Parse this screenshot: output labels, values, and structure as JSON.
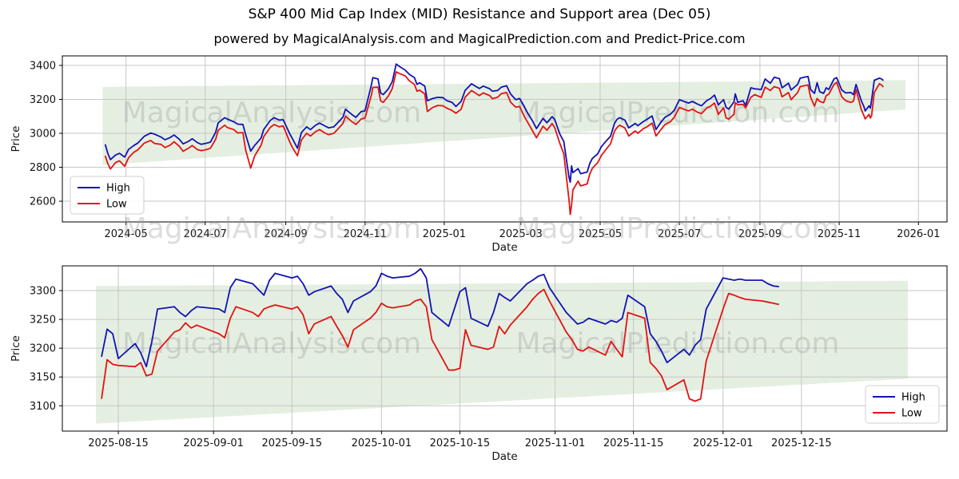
{
  "title": "S&P 400 Mid Cap Index (MID) Resistance and Support area (Dec 05)",
  "subtitle": "powered by MagicalAnalysis.com and MagicalPrediction.com and Predict-Price.com",
  "watermarks": [
    "MagicalAnalysis.com",
    "MagicalPrediction.com"
  ],
  "legend": {
    "high_label": "High",
    "low_label": "Low"
  },
  "colors": {
    "high": "#1212b4",
    "low": "#e41212",
    "band": "#e4efe1",
    "grid": "#c6c6c6",
    "spine": "#000000",
    "tick_text": "#141414",
    "watermark": "#989898",
    "legend_border": "#cccccc"
  },
  "chart_data": [
    {
      "type": "line",
      "name": "top-chart",
      "xlabel": "Date",
      "ylabel": "Price",
      "legend_position": "lower-left",
      "x_domain": [
        "2024-03-13",
        "2026-01-23"
      ],
      "y_domain": [
        2478,
        3456
      ],
      "y_ticks": [
        2600,
        2800,
        3000,
        3200,
        3400
      ],
      "x_ticks": [
        {
          "label": "2024-05",
          "date": "2024-05-01"
        },
        {
          "label": "2024-07",
          "date": "2024-07-01"
        },
        {
          "label": "2024-09",
          "date": "2024-09-01"
        },
        {
          "label": "2024-11",
          "date": "2024-11-01"
        },
        {
          "label": "2025-01",
          "date": "2025-01-01"
        },
        {
          "label": "2025-03",
          "date": "2025-03-01"
        },
        {
          "label": "2025-05",
          "date": "2025-05-01"
        },
        {
          "label": "2025-07",
          "date": "2025-07-01"
        },
        {
          "label": "2025-09",
          "date": "2025-09-01"
        },
        {
          "label": "2025-11",
          "date": "2025-11-01"
        },
        {
          "label": "2026-01",
          "date": "2026-01-01"
        }
      ],
      "band": {
        "x": [
          "2024-04-13",
          "2025-12-22"
        ],
        "upper": [
          3274,
          3313
        ],
        "lower": [
          2813,
          3140
        ]
      },
      "x": [
        "2024-04-15",
        "2024-04-17",
        "2024-04-19",
        "2024-04-23",
        "2024-04-26",
        "2024-04-30",
        "2024-05-03",
        "2024-05-07",
        "2024-05-10",
        "2024-05-15",
        "2024-05-20",
        "2024-05-23",
        "2024-05-28",
        "2024-05-31",
        "2024-06-04",
        "2024-06-07",
        "2024-06-11",
        "2024-06-14",
        "2024-06-18",
        "2024-06-21",
        "2024-06-25",
        "2024-06-28",
        "2024-07-02",
        "2024-07-05",
        "2024-07-09",
        "2024-07-11",
        "2024-07-16",
        "2024-07-18",
        "2024-07-23",
        "2024-07-26",
        "2024-07-30",
        "2024-08-01",
        "2024-08-05",
        "2024-08-08",
        "2024-08-13",
        "2024-08-15",
        "2024-08-20",
        "2024-08-23",
        "2024-08-27",
        "2024-08-30",
        "2024-09-04",
        "2024-09-06",
        "2024-09-10",
        "2024-09-13",
        "2024-09-17",
        "2024-09-20",
        "2024-09-24",
        "2024-09-27",
        "2024-10-01",
        "2024-10-04",
        "2024-10-08",
        "2024-10-11",
        "2024-10-15",
        "2024-10-17",
        "2024-10-22",
        "2024-10-25",
        "2024-10-29",
        "2024-11-01",
        "2024-11-06",
        "2024-11-07",
        "2024-11-11",
        "2024-11-13",
        "2024-11-15",
        "2024-11-19",
        "2024-11-22",
        "2024-11-25",
        "2024-11-27",
        "2024-12-02",
        "2024-12-05",
        "2024-12-09",
        "2024-12-11",
        "2024-12-13",
        "2024-12-17",
        "2024-12-19",
        "2024-12-23",
        "2024-12-27",
        "2024-12-31",
        "2025-01-03",
        "2025-01-07",
        "2025-01-10",
        "2025-01-14",
        "2025-01-17",
        "2025-01-22",
        "2025-01-24",
        "2025-01-28",
        "2025-01-31",
        "2025-02-05",
        "2025-02-07",
        "2025-02-11",
        "2025-02-14",
        "2025-02-18",
        "2025-02-21",
        "2025-02-25",
        "2025-02-28",
        "2025-03-04",
        "2025-03-06",
        "2025-03-10",
        "2025-03-13",
        "2025-03-18",
        "2025-03-21",
        "2025-03-25",
        "2025-03-27",
        "2025-03-31",
        "2025-04-03",
        "2025-04-07",
        "2025-04-08",
        "2025-04-09",
        "2025-04-10",
        "2025-04-14",
        "2025-04-16",
        "2025-04-21",
        "2025-04-23",
        "2025-04-25",
        "2025-04-29",
        "2025-05-02",
        "2025-05-06",
        "2025-05-09",
        "2025-05-12",
        "2025-05-14",
        "2025-05-16",
        "2025-05-20",
        "2025-05-23",
        "2025-05-28",
        "2025-05-30",
        "2025-06-03",
        "2025-06-06",
        "2025-06-10",
        "2025-06-13",
        "2025-06-17",
        "2025-06-20",
        "2025-06-24",
        "2025-06-27",
        "2025-07-01",
        "2025-07-03",
        "2025-07-08",
        "2025-07-11",
        "2025-07-15",
        "2025-07-18",
        "2025-07-22",
        "2025-07-25",
        "2025-07-28",
        "2025-07-31",
        "2025-08-04",
        "2025-08-06",
        "2025-08-08",
        "2025-08-12",
        "2025-08-13",
        "2025-08-15",
        "2025-08-19",
        "2025-08-21",
        "2025-08-25",
        "2025-08-28",
        "2025-09-02",
        "2025-09-05",
        "2025-09-09",
        "2025-09-12",
        "2025-09-16",
        "2025-09-18",
        "2025-09-23",
        "2025-09-25",
        "2025-09-30",
        "2025-10-02",
        "2025-10-08",
        "2025-10-10",
        "2025-10-13",
        "2025-10-15",
        "2025-10-17",
        "2025-10-20",
        "2025-10-22",
        "2025-10-24",
        "2025-10-28",
        "2025-10-30",
        "2025-11-03",
        "2025-11-06",
        "2025-11-10",
        "2025-11-12",
        "2025-11-14",
        "2025-11-18",
        "2025-11-20",
        "2025-11-21",
        "2025-11-24",
        "2025-11-25",
        "2025-11-26",
        "2025-11-28",
        "2025-12-02",
        "2025-12-04",
        "2025-12-05"
      ],
      "series": [
        {
          "name": "High",
          "color": "#1212b4",
          "values": [
            2935,
            2882,
            2845,
            2872,
            2882,
            2860,
            2905,
            2928,
            2942,
            2982,
            3002,
            2995,
            2978,
            2962,
            2975,
            2990,
            2965,
            2938,
            2952,
            2968,
            2945,
            2935,
            2942,
            2948,
            3006,
            3062,
            3092,
            3084,
            3068,
            3054,
            3052,
            2995,
            2895,
            2928,
            2972,
            3022,
            3075,
            3092,
            3078,
            3080,
            2998,
            2970,
            2912,
            3004,
            3038,
            3022,
            3048,
            3060,
            3044,
            3032,
            3038,
            3062,
            3095,
            3142,
            3110,
            3094,
            3128,
            3132,
            3288,
            3328,
            3320,
            3238,
            3228,
            3262,
            3305,
            3408,
            3396,
            3372,
            3348,
            3328,
            3288,
            3298,
            3278,
            3192,
            3205,
            3212,
            3210,
            3192,
            3182,
            3158,
            3188,
            3252,
            3292,
            3282,
            3264,
            3278,
            3262,
            3248,
            3252,
            3272,
            3280,
            3232,
            3198,
            3205,
            3152,
            3122,
            3072,
            3028,
            3088,
            3062,
            3098,
            3082,
            2995,
            2952,
            2742,
            2712,
            2808,
            2768,
            2792,
            2762,
            2772,
            2822,
            2852,
            2878,
            2922,
            2958,
            2982,
            3058,
            3082,
            3092,
            3078,
            3032,
            3058,
            3045,
            3068,
            3082,
            3102,
            3022,
            3068,
            3095,
            3112,
            3135,
            3198,
            3192,
            3178,
            3188,
            3172,
            3162,
            3192,
            3205,
            3225,
            3168,
            3198,
            3152,
            3142,
            3185,
            3232,
            3182,
            3192,
            3164,
            3268,
            3262,
            3258,
            3320,
            3295,
            3330,
            3322,
            3268,
            3295,
            3255,
            3288,
            3325,
            3335,
            3258,
            3235,
            3298,
            3245,
            3235,
            3268,
            3258,
            3320,
            3328,
            3255,
            3238,
            3240,
            3228,
            3288,
            3192,
            3158,
            3132,
            3162,
            3148,
            3198,
            3312,
            3325,
            3318,
            3310
          ]
        },
        {
          "name": "Low",
          "color": "#e41212",
          "values": [
            2868,
            2822,
            2790,
            2828,
            2838,
            2806,
            2856,
            2888,
            2902,
            2942,
            2958,
            2940,
            2935,
            2916,
            2930,
            2950,
            2924,
            2894,
            2912,
            2928,
            2904,
            2898,
            2904,
            2912,
            2964,
            3018,
            3048,
            3034,
            3022,
            3002,
            3004,
            2905,
            2795,
            2866,
            2930,
            2980,
            3034,
            3052,
            3038,
            3044,
            2950,
            2918,
            2868,
            2960,
            3000,
            2984,
            3010,
            3022,
            3002,
            2992,
            3000,
            3024,
            3058,
            3100,
            3068,
            3052,
            3084,
            3090,
            3228,
            3270,
            3272,
            3192,
            3182,
            3220,
            3264,
            3362,
            3354,
            3338,
            3310,
            3288,
            3248,
            3254,
            3232,
            3128,
            3152,
            3164,
            3162,
            3148,
            3134,
            3118,
            3142,
            3212,
            3252,
            3242,
            3222,
            3238,
            3222,
            3204,
            3212,
            3234,
            3240,
            3184,
            3154,
            3158,
            3094,
            3068,
            3014,
            2974,
            3042,
            3018,
            3058,
            3034,
            2940,
            2880,
            2610,
            2522,
            2578,
            2666,
            2718,
            2690,
            2702,
            2760,
            2794,
            2826,
            2870,
            2910,
            2938,
            3012,
            3034,
            3048,
            3032,
            2984,
            3014,
            3000,
            3026,
            3038,
            3060,
            2984,
            3024,
            3052,
            3068,
            3094,
            3152,
            3146,
            3132,
            3142,
            3124,
            3116,
            3148,
            3160,
            3178,
            3112,
            3150,
            3090,
            3084,
            3112,
            3180,
            3168,
            3170,
            3150,
            3212,
            3228,
            3212,
            3272,
            3252,
            3275,
            3265,
            3215,
            3240,
            3198,
            3240,
            3275,
            3285,
            3212,
            3160,
            3205,
            3188,
            3180,
            3222,
            3230,
            3288,
            3300,
            3215,
            3192,
            3182,
            3190,
            3258,
            3140,
            3105,
            3085,
            3112,
            3090,
            3106,
            3240,
            3292,
            3282,
            3272
          ]
        }
      ]
    },
    {
      "type": "line",
      "name": "bottom-chart",
      "xlabel": "Date",
      "ylabel": "Price",
      "legend_position": "lower-right",
      "x_domain": [
        "2025-08-05",
        "2026-01-10"
      ],
      "y_domain": [
        3056,
        3343
      ],
      "y_ticks": [
        3100,
        3150,
        3200,
        3250,
        3300
      ],
      "x_ticks": [
        {
          "label": "2025-08-15",
          "date": "2025-08-15"
        },
        {
          "label": "2025-09-01",
          "date": "2025-09-01"
        },
        {
          "label": "2025-09-15",
          "date": "2025-09-15"
        },
        {
          "label": "2025-10-01",
          "date": "2025-10-01"
        },
        {
          "label": "2025-10-15",
          "date": "2025-10-15"
        },
        {
          "label": "2025-11-01",
          "date": "2025-11-01"
        },
        {
          "label": "2025-11-15",
          "date": "2025-11-15"
        },
        {
          "label": "2025-12-01",
          "date": "2025-12-01"
        },
        {
          "label": "2025-12-15",
          "date": "2025-12-15"
        }
      ],
      "band": {
        "x": [
          "2025-08-11",
          "2026-01-03"
        ],
        "upper": [
          3308,
          3317
        ],
        "lower": [
          3069,
          3147
        ]
      },
      "x": [
        "2025-08-12",
        "2025-08-13",
        "2025-08-14",
        "2025-08-15",
        "2025-08-18",
        "2025-08-19",
        "2025-08-20",
        "2025-08-21",
        "2025-08-22",
        "2025-08-25",
        "2025-08-26",
        "2025-08-27",
        "2025-08-28",
        "2025-08-29",
        "2025-09-02",
        "2025-09-03",
        "2025-09-04",
        "2025-09-05",
        "2025-09-08",
        "2025-09-09",
        "2025-09-10",
        "2025-09-11",
        "2025-09-12",
        "2025-09-15",
        "2025-09-16",
        "2025-09-17",
        "2025-09-18",
        "2025-09-19",
        "2025-09-22",
        "2025-09-23",
        "2025-09-24",
        "2025-09-25",
        "2025-09-26",
        "2025-09-29",
        "2025-09-30",
        "2025-10-01",
        "2025-10-02",
        "2025-10-03",
        "2025-10-06",
        "2025-10-07",
        "2025-10-08",
        "2025-10-09",
        "2025-10-10",
        "2025-10-13",
        "2025-10-14",
        "2025-10-15",
        "2025-10-16",
        "2025-10-17",
        "2025-10-20",
        "2025-10-21",
        "2025-10-22",
        "2025-10-23",
        "2025-10-24",
        "2025-10-27",
        "2025-10-28",
        "2025-10-29",
        "2025-10-30",
        "2025-10-31",
        "2025-11-03",
        "2025-11-04",
        "2025-11-05",
        "2025-11-06",
        "2025-11-07",
        "2025-11-10",
        "2025-11-11",
        "2025-11-12",
        "2025-11-13",
        "2025-11-14",
        "2025-11-17",
        "2025-11-18",
        "2025-11-19",
        "2025-11-20",
        "2025-11-21",
        "2025-11-24",
        "2025-11-25",
        "2025-11-26",
        "2025-11-27",
        "2025-11-28",
        "2025-12-01",
        "2025-12-02",
        "2025-12-03",
        "2025-12-04",
        "2025-12-05",
        "2025-12-08",
        "2025-12-09",
        "2025-12-10",
        "2025-12-11"
      ],
      "series": [
        {
          "name": "High",
          "color": "#1212b4",
          "values": [
            3185,
            3233,
            3225,
            3182,
            3208,
            3192,
            3168,
            3212,
            3268,
            3272,
            3262,
            3255,
            3265,
            3272,
            3268,
            3262,
            3305,
            3320,
            3312,
            3302,
            3292,
            3318,
            3330,
            3322,
            3325,
            3312,
            3292,
            3298,
            3308,
            3295,
            3285,
            3262,
            3282,
            3298,
            3308,
            3330,
            3325,
            3322,
            3325,
            3330,
            3338,
            3322,
            3262,
            3238,
            3268,
            3298,
            3305,
            3252,
            3238,
            3262,
            3295,
            3288,
            3282,
            3312,
            3318,
            3325,
            3328,
            3305,
            3262,
            3252,
            3242,
            3245,
            3252,
            3242,
            3248,
            3245,
            3252,
            3292,
            3272,
            3225,
            3212,
            3195,
            3175,
            3198,
            3188,
            3205,
            3215,
            3268,
            3322,
            3320,
            3318,
            3320,
            3318,
            3318,
            3312,
            3308,
            3307
          ]
        },
        {
          "name": "Low",
          "color": "#e41212",
          "values": [
            3112,
            3180,
            3172,
            3170,
            3168,
            3175,
            3152,
            3155,
            3195,
            3228,
            3232,
            3244,
            3235,
            3240,
            3225,
            3218,
            3252,
            3272,
            3262,
            3255,
            3268,
            3272,
            3275,
            3268,
            3272,
            3258,
            3225,
            3242,
            3255,
            3238,
            3222,
            3202,
            3232,
            3252,
            3262,
            3278,
            3272,
            3270,
            3275,
            3282,
            3285,
            3272,
            3215,
            3162,
            3162,
            3165,
            3232,
            3205,
            3198,
            3202,
            3238,
            3225,
            3240,
            3272,
            3285,
            3295,
            3302,
            3282,
            3228,
            3215,
            3198,
            3195,
            3202,
            3188,
            3212,
            3198,
            3185,
            3262,
            3252,
            3175,
            3165,
            3152,
            3128,
            3145,
            3112,
            3108,
            3112,
            3178,
            3268,
            3295,
            3292,
            3288,
            3285,
            3282,
            3280,
            3278,
            3276
          ]
        }
      ]
    }
  ]
}
